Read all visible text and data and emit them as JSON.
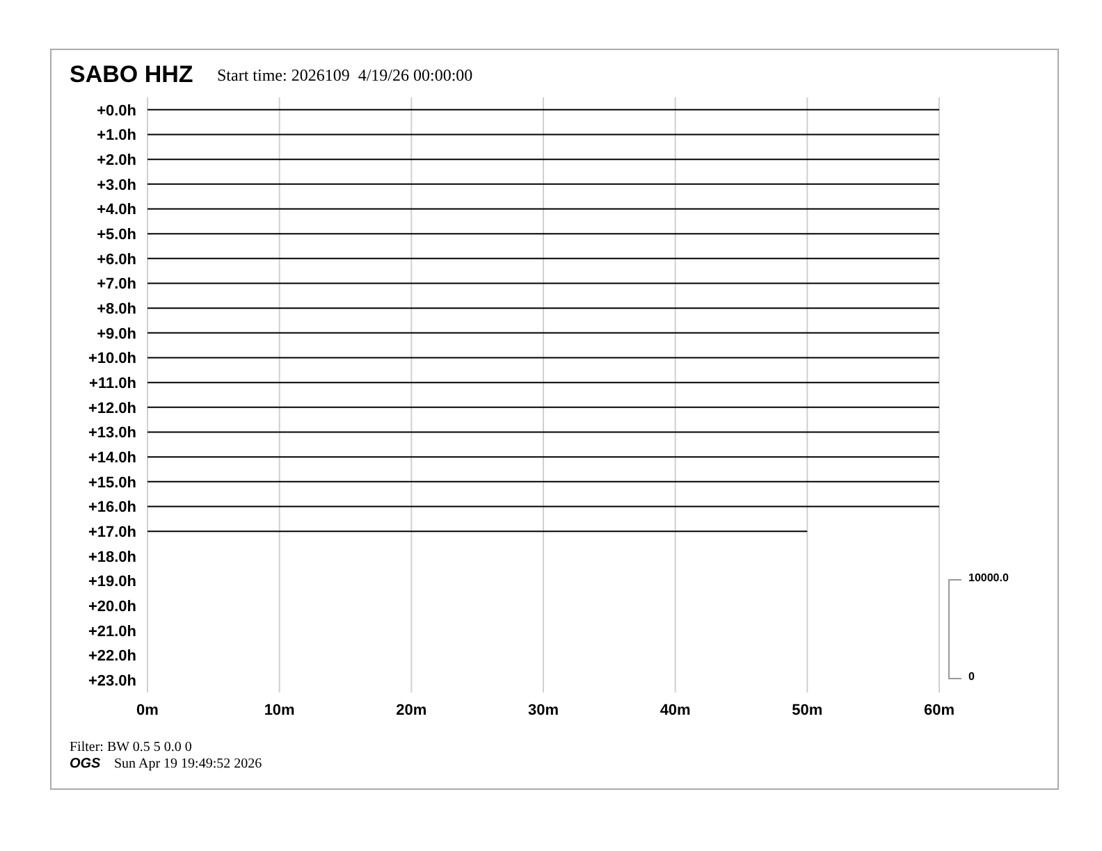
{
  "chart_data": {
    "type": "line",
    "title": "SABO HHZ",
    "subtitle": "Start time: 2026109  4/19/26 00:00:00",
    "xlim": [
      0,
      60
    ],
    "xticks": [
      {
        "value": 0,
        "label": "0m"
      },
      {
        "value": 10,
        "label": "10m"
      },
      {
        "value": 20,
        "label": "20m"
      },
      {
        "value": 30,
        "label": "30m"
      },
      {
        "value": 40,
        "label": "40m"
      },
      {
        "value": 50,
        "label": "50m"
      },
      {
        "value": 60,
        "label": "60m"
      }
    ],
    "ylim": [
      23.5,
      -0.5
    ],
    "yticks": [
      {
        "value": 0,
        "label": "+0.0h"
      },
      {
        "value": 1,
        "label": "+1.0h"
      },
      {
        "value": 2,
        "label": "+2.0h"
      },
      {
        "value": 3,
        "label": "+3.0h"
      },
      {
        "value": 4,
        "label": "+4.0h"
      },
      {
        "value": 5,
        "label": "+5.0h"
      },
      {
        "value": 6,
        "label": "+6.0h"
      },
      {
        "value": 7,
        "label": "+7.0h"
      },
      {
        "value": 8,
        "label": "+8.0h"
      },
      {
        "value": 9,
        "label": "+9.0h"
      },
      {
        "value": 10,
        "label": "+10.0h"
      },
      {
        "value": 11,
        "label": "+11.0h"
      },
      {
        "value": 12,
        "label": "+12.0h"
      },
      {
        "value": 13,
        "label": "+13.0h"
      },
      {
        "value": 14,
        "label": "+14.0h"
      },
      {
        "value": 15,
        "label": "+15.0h"
      },
      {
        "value": 16,
        "label": "+16.0h"
      },
      {
        "value": 17,
        "label": "+17.0h"
      },
      {
        "value": 18,
        "label": "+18.0h"
      },
      {
        "value": 19,
        "label": "+19.0h"
      },
      {
        "value": 20,
        "label": "+20.0h"
      },
      {
        "value": 21,
        "label": "+21.0h"
      },
      {
        "value": 22,
        "label": "+22.0h"
      },
      {
        "value": 23,
        "label": "+23.0h"
      }
    ],
    "grid": "x",
    "marker": "none",
    "line_style": "solid",
    "series": [
      {
        "color": "#000000",
        "x": [
          0,
          60
        ],
        "values": [
          0,
          0
        ]
      },
      {
        "color": "#000000",
        "x": [
          0,
          60
        ],
        "values": [
          1,
          1
        ]
      },
      {
        "color": "#000000",
        "x": [
          0,
          60
        ],
        "values": [
          2,
          2
        ]
      },
      {
        "color": "#000000",
        "x": [
          0,
          60
        ],
        "values": [
          3,
          3
        ]
      },
      {
        "color": "#000000",
        "x": [
          0,
          60
        ],
        "values": [
          4,
          4
        ]
      },
      {
        "color": "#000000",
        "x": [
          0,
          60
        ],
        "values": [
          5,
          5
        ]
      },
      {
        "color": "#000000",
        "x": [
          0,
          60
        ],
        "values": [
          6,
          6
        ]
      },
      {
        "color": "#000000",
        "x": [
          0,
          60
        ],
        "values": [
          7,
          7
        ]
      },
      {
        "color": "#000000",
        "x": [
          0,
          60
        ],
        "values": [
          8,
          8
        ]
      },
      {
        "color": "#000000",
        "x": [
          0,
          60
        ],
        "values": [
          9,
          9
        ]
      },
      {
        "color": "#000000",
        "x": [
          0,
          60
        ],
        "values": [
          10,
          10
        ]
      },
      {
        "color": "#000000",
        "x": [
          0,
          60
        ],
        "values": [
          11,
          11
        ]
      },
      {
        "color": "#000000",
        "x": [
          0,
          60
        ],
        "values": [
          12,
          12
        ]
      },
      {
        "color": "#000000",
        "x": [
          0,
          60
        ],
        "values": [
          13,
          13
        ]
      },
      {
        "color": "#000000",
        "x": [
          0,
          60
        ],
        "values": [
          14,
          14
        ]
      },
      {
        "color": "#000000",
        "x": [
          0,
          60
        ],
        "values": [
          15,
          15
        ]
      },
      {
        "color": "#000000",
        "x": [
          0,
          60
        ],
        "values": [
          16,
          16
        ]
      },
      {
        "color": "#000000",
        "x": [
          0,
          50
        ],
        "values": [
          17,
          17
        ]
      }
    ],
    "annotations": [
      "10000.0",
      "0",
      "Filter: BW 0.5 5 0.0 0",
      "OGS",
      "Sun Apr 19 19:49:52 2026"
    ]
  }
}
